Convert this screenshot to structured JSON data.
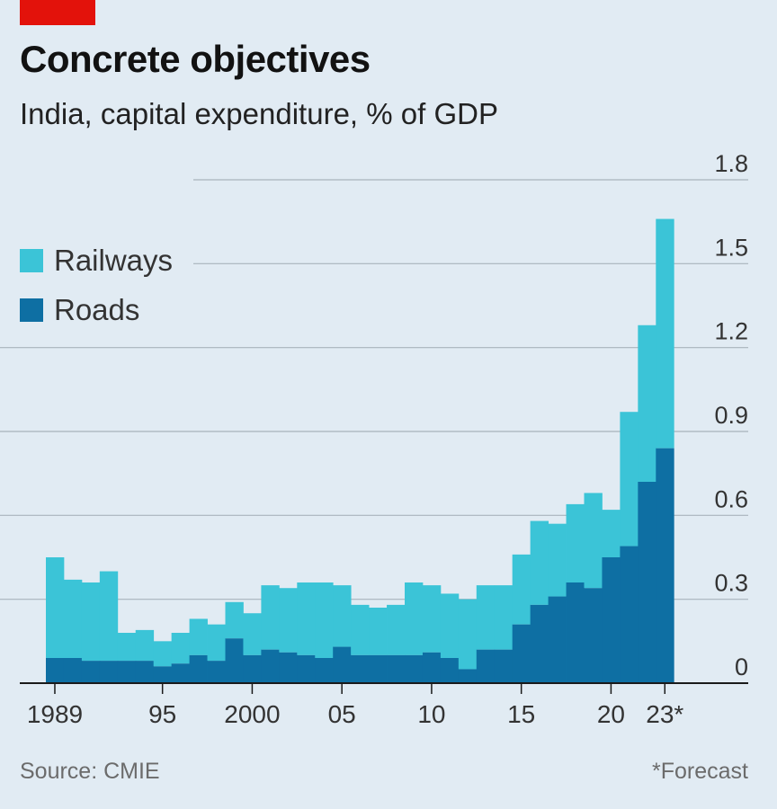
{
  "header": {
    "title": "Concrete objectives",
    "subtitle": "India, capital expenditure, % of GDP"
  },
  "footer": {
    "source": "Source: CMIE",
    "note": "*Forecast"
  },
  "colors": {
    "railways": "#3bc4d7",
    "roads": "#0e6fa3",
    "background": "#e1ebf3",
    "brand_red": "#e3120b"
  },
  "chart_data": {
    "type": "bar",
    "stacked": true,
    "title": "Concrete objectives",
    "subtitle": "India, capital expenditure, % of GDP",
    "categories": [
      "1989",
      "1990",
      "1991",
      "1992",
      "1993",
      "1994",
      "1995",
      "1996",
      "1997",
      "1998",
      "1999",
      "2000",
      "2001",
      "2002",
      "2003",
      "2004",
      "2005",
      "2006",
      "2007",
      "2008",
      "2009",
      "2010",
      "2011",
      "2012",
      "2013",
      "2014",
      "2015",
      "2016",
      "2017",
      "2018",
      "2019",
      "2020",
      "2021",
      "2022",
      "2023*"
    ],
    "tick_labels": [
      {
        "category": "1989",
        "label": "1989"
      },
      {
        "category": "1995",
        "label": "95"
      },
      {
        "category": "2000",
        "label": "2000"
      },
      {
        "category": "2005",
        "label": "05"
      },
      {
        "category": "2010",
        "label": "10"
      },
      {
        "category": "2015",
        "label": "15"
      },
      {
        "category": "2020",
        "label": "20"
      },
      {
        "category": "2023*",
        "label": "23*"
      }
    ],
    "series": [
      {
        "name": "Roads",
        "color": "#0e6fa3",
        "values": [
          0.09,
          0.09,
          0.08,
          0.08,
          0.08,
          0.08,
          0.06,
          0.07,
          0.1,
          0.08,
          0.16,
          0.1,
          0.12,
          0.11,
          0.1,
          0.09,
          0.13,
          0.1,
          0.1,
          0.1,
          0.1,
          0.11,
          0.09,
          0.05,
          0.12,
          0.12,
          0.21,
          0.28,
          0.31,
          0.36,
          0.34,
          0.45,
          0.49,
          0.72,
          0.84
        ]
      },
      {
        "name": "Railways",
        "color": "#3bc4d7",
        "values": [
          0.36,
          0.28,
          0.28,
          0.32,
          0.1,
          0.11,
          0.09,
          0.11,
          0.13,
          0.13,
          0.13,
          0.15,
          0.23,
          0.23,
          0.26,
          0.27,
          0.22,
          0.18,
          0.17,
          0.18,
          0.26,
          0.24,
          0.23,
          0.25,
          0.23,
          0.23,
          0.25,
          0.3,
          0.26,
          0.28,
          0.34,
          0.17,
          0.48,
          0.56,
          0.82
        ]
      }
    ],
    "y_ticks": [
      0,
      0.3,
      0.6,
      0.9,
      1.2,
      1.5,
      1.8
    ],
    "y_tick_labels": [
      "0",
      "0.3",
      "0.6",
      "0.9",
      "1.2",
      "1.5",
      "1.8"
    ],
    "ylim": [
      0,
      1.8
    ],
    "grid": true,
    "legend_position": "top-left",
    "axis_side": "right"
  }
}
